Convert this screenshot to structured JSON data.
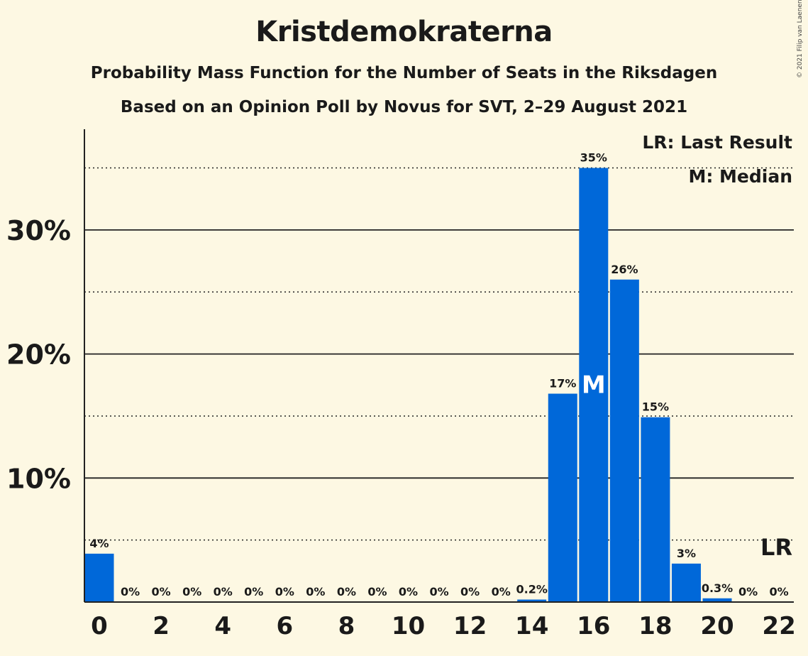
{
  "header": {
    "title": "Kristdemokraterna",
    "subtitle": "Probability Mass Function for the Number of Seats in the Riksdagen",
    "subtitle2": "Based on an Opinion Poll by Novus for SVT, 2–29 August 2021",
    "copyright": "© 2021 Filip van Laenen"
  },
  "legend": {
    "last_result": "LR: Last Result",
    "median": "M: Median"
  },
  "colors": {
    "bar": "#0068d9",
    "background": "#fdf8e3",
    "text": "#1a1a1a"
  },
  "chart_data": {
    "type": "bar",
    "x": [
      0,
      1,
      2,
      3,
      4,
      5,
      6,
      7,
      8,
      9,
      10,
      11,
      12,
      13,
      14,
      15,
      16,
      17,
      18,
      19,
      20,
      21,
      22
    ],
    "values": [
      3.9,
      0,
      0,
      0,
      0,
      0,
      0,
      0,
      0,
      0,
      0,
      0,
      0,
      0,
      0.2,
      16.8,
      35.0,
      26.0,
      14.9,
      3.1,
      0.3,
      0,
      0
    ],
    "labels": [
      "4%",
      "0%",
      "0%",
      "0%",
      "0%",
      "0%",
      "0%",
      "0%",
      "0%",
      "0%",
      "0%",
      "0%",
      "0%",
      "0%",
      "0.2%",
      "17%",
      "35%",
      "26%",
      "15%",
      "3%",
      "0.3%",
      "0%",
      "0%"
    ],
    "x_tick_labels": [
      "0",
      "2",
      "4",
      "6",
      "8",
      "10",
      "12",
      "14",
      "16",
      "18",
      "20",
      "22"
    ],
    "x_tick_values": [
      0,
      2,
      4,
      6,
      8,
      10,
      12,
      14,
      16,
      18,
      20,
      22
    ],
    "y_tick_labels": [
      "10%",
      "20%",
      "30%"
    ],
    "y_tick_values": [
      10,
      20,
      30
    ],
    "y_minor_gridlines": [
      5,
      15,
      25,
      35
    ],
    "ylim": [
      0,
      38
    ],
    "median_seat": 16,
    "median_marker": "M",
    "last_result_seat": 22,
    "last_result_marker": "LR"
  }
}
